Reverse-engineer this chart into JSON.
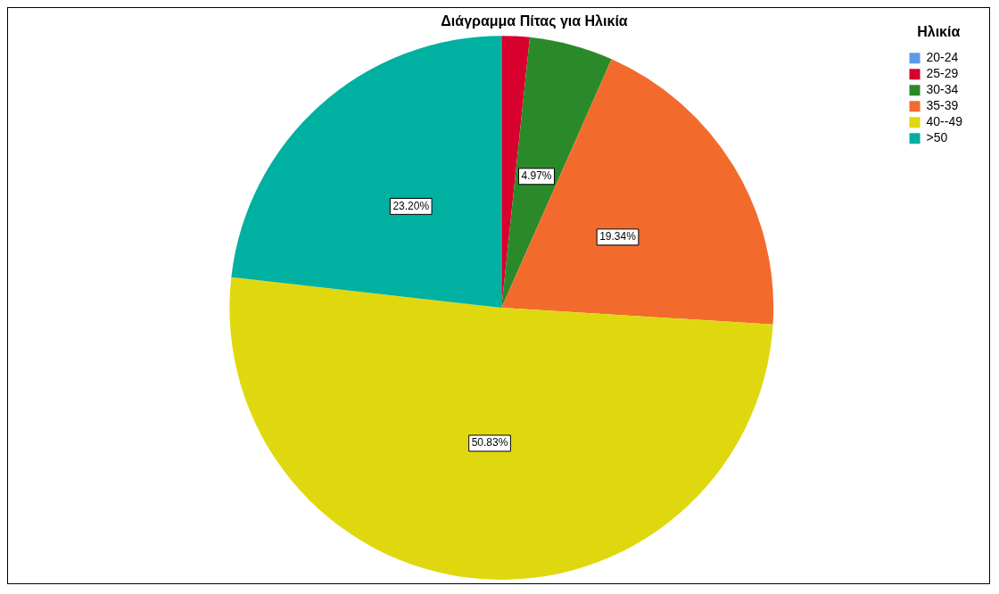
{
  "chart_data": {
    "type": "pie",
    "title": "Διάγραμμα Πίτας για Ηλικία",
    "legend_title": "Ηλικία",
    "legend": "top right",
    "categories": [
      "20-24",
      "25-29",
      "30-34",
      "35-39",
      "40--49",
      ">50"
    ],
    "values": [
      0,
      1.66,
      4.97,
      19.34,
      50.83,
      23.2
    ],
    "colors": [
      "#5a9be6",
      "#d8002e",
      "#2a8a2a",
      "#f26b2d",
      "#e0d80e",
      "#00b0a0"
    ],
    "value_labels": [
      null,
      null,
      "4.97%",
      "19.34%",
      "50.83%",
      "23.20%"
    ]
  }
}
